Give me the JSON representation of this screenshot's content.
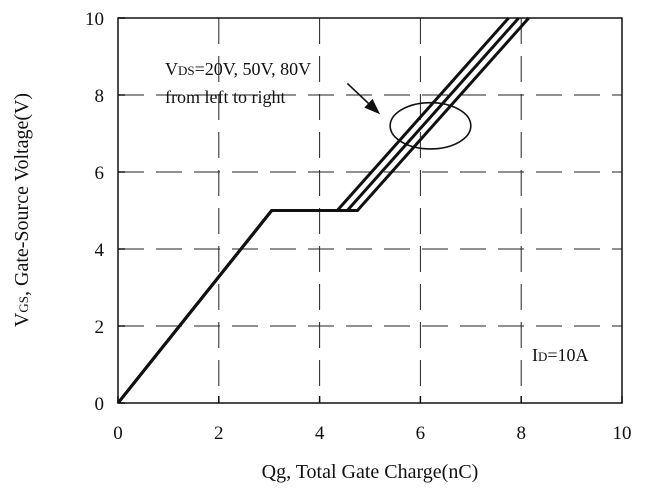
{
  "chart_data": {
    "type": "line",
    "title": "",
    "xlabel": "Qg, Total Gate Charge(nC)",
    "ylabel": {
      "main": "V",
      "sub": "GS",
      "rest": ", Gate-Source Voltage(V)"
    },
    "xlim": [
      0,
      10
    ],
    "ylim": [
      0,
      10
    ],
    "x_ticks": [
      "0",
      "2",
      "4",
      "6",
      "8",
      "10"
    ],
    "y_ticks": [
      "0",
      "2",
      "4",
      "6",
      "8",
      "10"
    ],
    "grid": true,
    "grid_style": "dashed",
    "line_color": "#111111",
    "series": [
      {
        "points": [
          [
            0,
            0
          ],
          [
            3.05,
            5.0
          ],
          [
            4.35,
            5.0
          ],
          [
            7.75,
            10.0
          ]
        ]
      },
      {
        "points": [
          [
            0,
            0
          ],
          [
            3.05,
            5.0
          ],
          [
            4.55,
            5.0
          ],
          [
            7.95,
            10.0
          ]
        ]
      },
      {
        "points": [
          [
            0,
            0
          ],
          [
            3.05,
            5.0
          ],
          [
            4.75,
            5.0
          ],
          [
            8.15,
            10.0
          ]
        ]
      }
    ],
    "annotations": {
      "vds_label": {
        "main": "V",
        "sub": "DS",
        "rest": "=20V, 50V, 80V"
      },
      "order_label": "from left to right",
      "id_label": {
        "main": "I",
        "sub": "D",
        "rest": "=10A"
      },
      "ellipse_center": [
        6.2,
        7.2
      ],
      "ellipse_radius": [
        0.8,
        0.6
      ],
      "arrow_from": [
        4.55,
        8.3
      ],
      "arrow_to": [
        5.2,
        7.5
      ]
    }
  }
}
